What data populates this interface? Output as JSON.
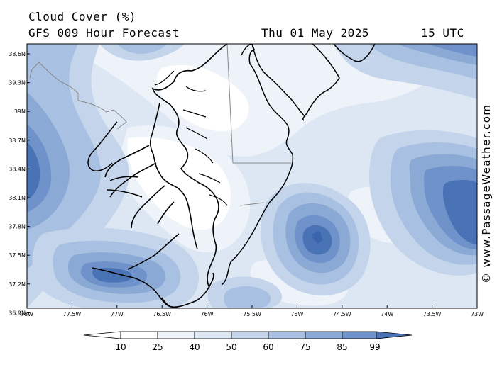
{
  "header": {
    "title": "Cloud Cover (%)",
    "model": "GFS 009 Hour Forecast",
    "date": "Thu 01 May 2025",
    "time": "15 UTC"
  },
  "credit": "© www.PassageWeather.com",
  "latitudes": [
    "38.6N",
    "39.3N",
    "39N",
    "38.7N",
    "38.4N",
    "38.1N",
    "37.8N",
    "37.5N",
    "37.2N",
    "36.9N"
  ],
  "longitudes": [
    "78W",
    "77.5W",
    "77W",
    "76.5W",
    "76W",
    "75.5W",
    "75W",
    "74.5W",
    "74W",
    "73.5W",
    "73W"
  ],
  "color_scale": {
    "levels": [
      "10",
      "25",
      "40",
      "50",
      "60",
      "75",
      "85",
      "99"
    ],
    "colors": [
      "#ffffff",
      "#eef3fa",
      "#dde7f4",
      "#c3d4eb",
      "#a8c0e1",
      "#8aa9d5",
      "#6e92c9",
      "#4a73b5",
      "#3a64ad"
    ]
  }
}
